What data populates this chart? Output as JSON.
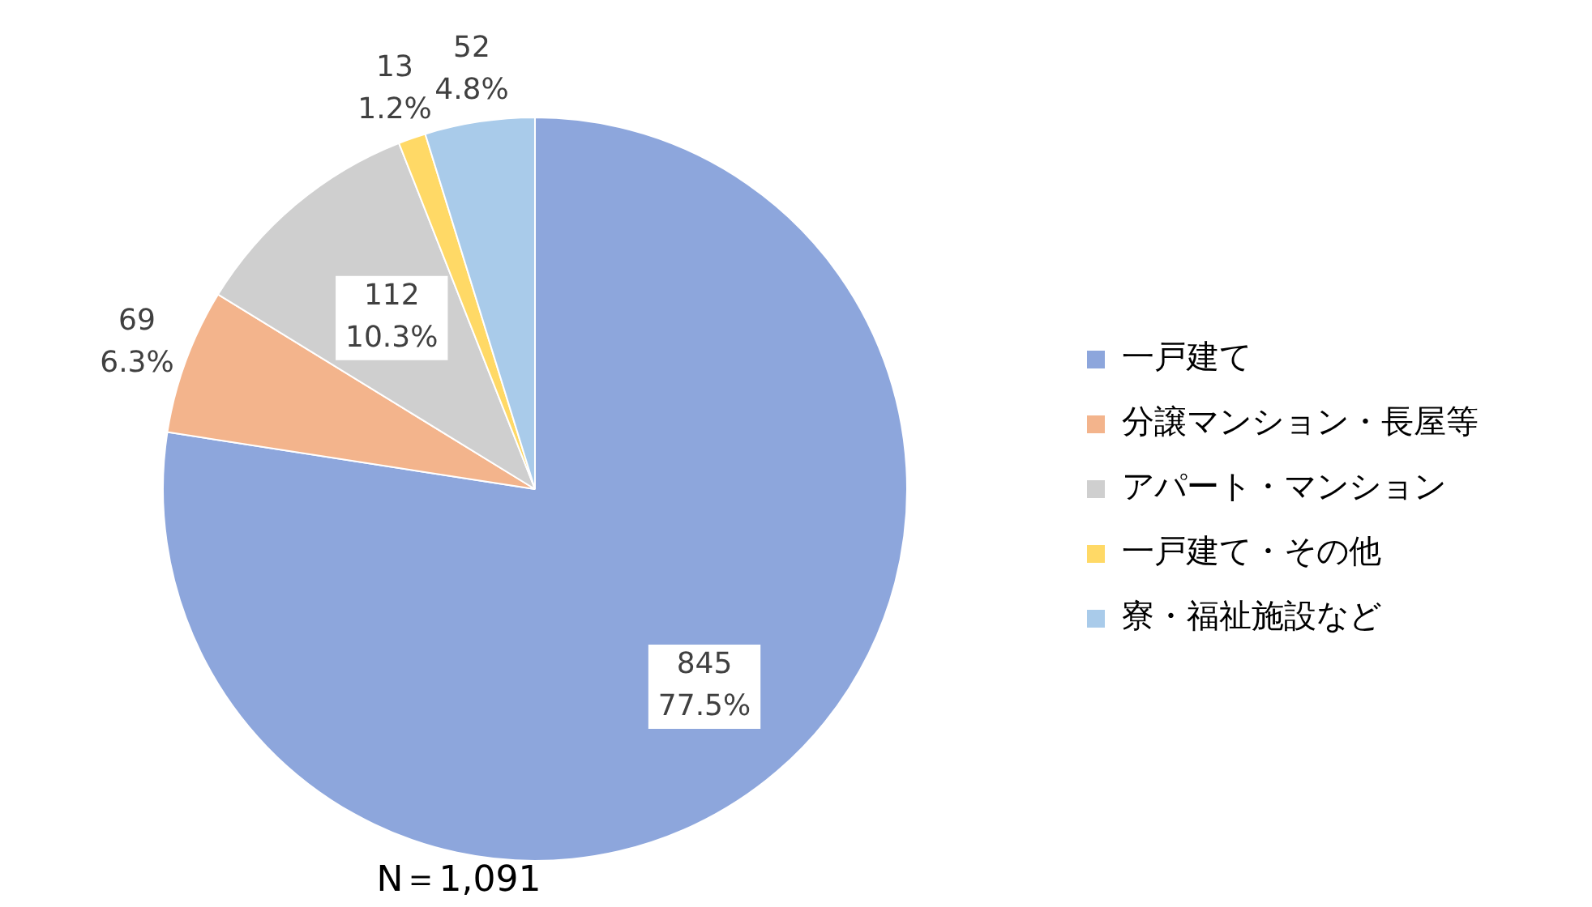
{
  "chart_data": {
    "type": "pie",
    "categories": [
      "一戸建て",
      "分譲マンション・長屋等",
      "アパート・マンション",
      "一戸建て・その他",
      "寮・福祉施設など"
    ],
    "values": [
      845,
      69,
      112,
      13,
      52
    ],
    "value_labels": [
      "845\n77.5%",
      "69\n6.3%",
      "112\n10.3%",
      "13\n1.2%",
      "52\n4.8%"
    ],
    "colors": [
      "#8da6dc",
      "#f3b48c",
      "#cfcfcf",
      "#ffd966",
      "#a9cbea"
    ],
    "legend": "right",
    "annotations": [
      "N＝1,091"
    ]
  }
}
